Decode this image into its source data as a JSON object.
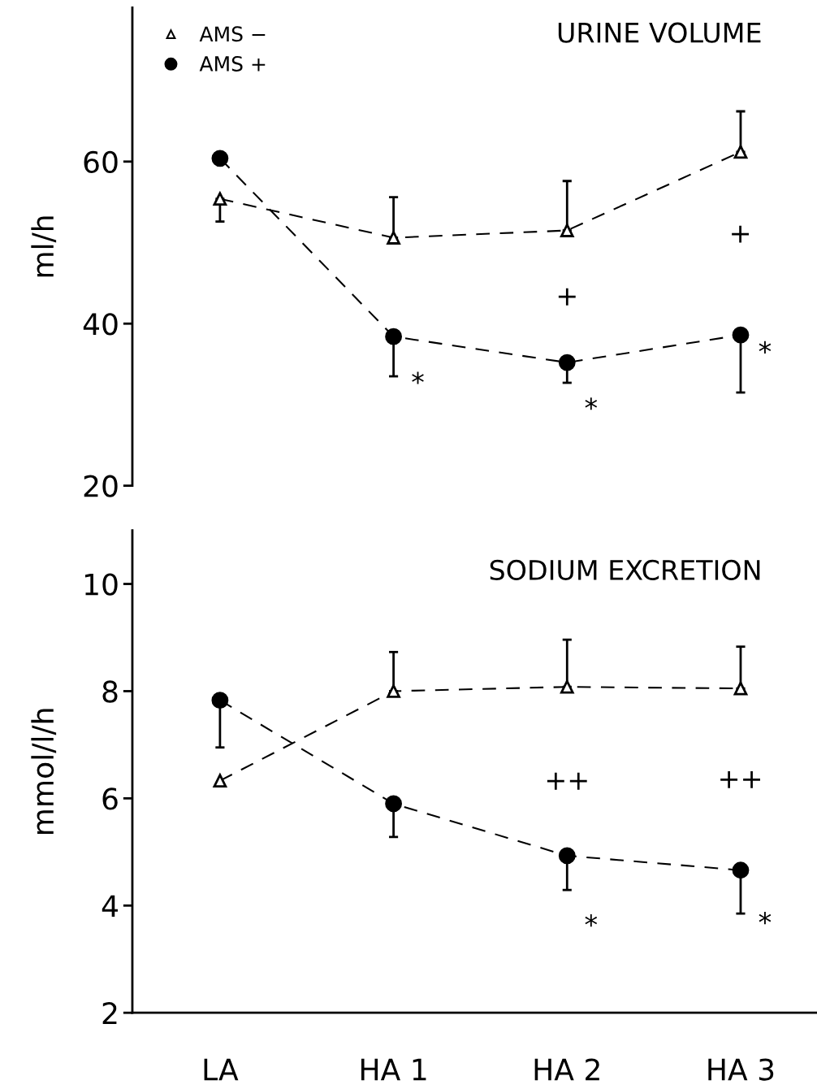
{
  "chart_data": [
    {
      "type": "line",
      "title": "URINE VOLUME",
      "ylabel": "ml/h",
      "categories": [
        null,
        null,
        null,
        null
      ],
      "series": [
        {
          "name": "AMS −",
          "color": "#000000",
          "marker": "triangle",
          "values": [
            55.4,
            50.6,
            51.5,
            61.2
          ],
          "errors": [
            [
              52.6,
              55.4
            ],
            [
              50.6,
              55.6
            ],
            [
              51.5,
              57.6
            ],
            [
              61.2,
              66.2
            ]
          ]
        },
        {
          "name": "AMS +",
          "color": "#000000",
          "marker": "circle",
          "values": [
            60.4,
            38.4,
            35.2,
            38.6
          ],
          "errors": [
            null,
            [
              33.5,
              38.4
            ],
            [
              32.7,
              35.2
            ],
            [
              31.5,
              38.6
            ]
          ]
        }
      ],
      "ylim": [
        20,
        79
      ],
      "yticks": [
        20,
        40,
        60
      ],
      "line_style": "dashed",
      "legend": "top left",
      "grid": false,
      "tick_labels": "y",
      "annotations": [
        "*",
        "+",
        "*",
        "+",
        "*"
      ]
    },
    {
      "type": "line",
      "title": "SODIUM EXCRETION",
      "ylabel": "mmol/l/h",
      "categories": [
        "LA",
        "HA 1",
        "HA 2",
        "HA 3"
      ],
      "series": [
        {
          "color": "#000000",
          "marker": "triangle",
          "values": [
            6.33,
            8.0,
            8.08,
            8.05
          ],
          "errors": [
            null,
            [
              8.0,
              8.73
            ],
            [
              8.08,
              8.96
            ],
            [
              8.05,
              8.83
            ]
          ]
        },
        {
          "color": "#000000",
          "marker": "circle",
          "values": [
            7.83,
            5.9,
            4.93,
            4.66
          ],
          "errors": [
            [
              6.95,
              7.83
            ],
            [
              5.28,
              5.9
            ],
            [
              4.29,
              4.93
            ],
            [
              3.85,
              4.66
            ]
          ]
        }
      ],
      "ylim": [
        2,
        11
      ],
      "yticks": [
        2,
        4,
        6,
        8,
        10
      ],
      "line_style": "dashed",
      "legend": false,
      "grid": false,
      "annotations": [
        "++",
        "*",
        "++",
        "*"
      ]
    }
  ]
}
